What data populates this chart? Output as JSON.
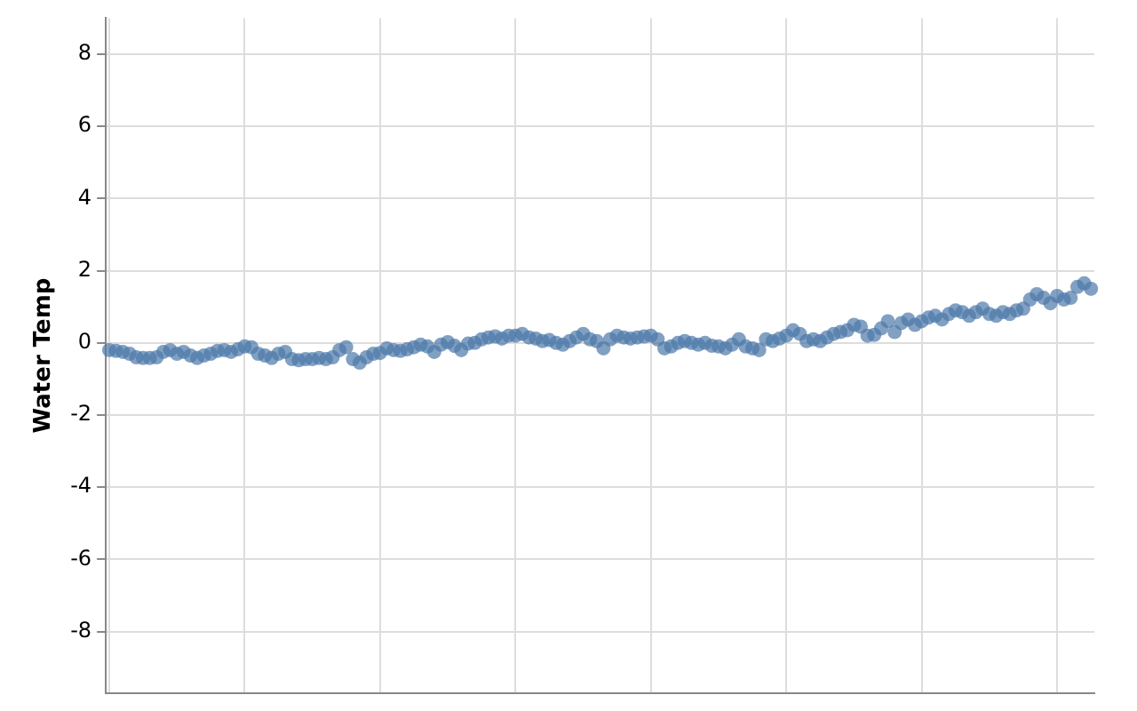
{
  "chart_data": {
    "type": "scatter",
    "ylabel": "Water Temp",
    "categories": [
      null,
      null,
      null,
      null,
      null,
      null,
      null,
      null,
      null,
      null,
      null,
      null,
      null,
      null,
      null,
      null,
      null,
      null,
      null,
      null,
      null,
      null,
      null,
      null,
      null,
      null,
      null,
      null,
      null,
      null,
      null,
      null,
      null,
      null,
      null,
      null,
      null,
      null,
      null,
      null,
      null,
      null,
      null,
      null,
      null,
      null,
      null,
      null,
      null,
      null,
      null,
      null,
      null,
      null,
      null,
      null,
      null,
      null,
      null,
      null,
      null,
      null,
      null,
      null,
      null,
      null,
      null,
      null,
      null,
      null,
      null,
      null,
      null,
      null,
      null,
      null,
      null,
      null,
      null,
      null,
      null,
      null,
      null,
      null,
      null,
      null,
      null,
      null,
      null,
      null,
      null,
      null,
      null,
      null,
      null,
      null,
      null,
      null,
      null,
      null,
      null,
      null,
      null,
      null,
      null,
      null,
      null,
      null,
      null,
      null,
      null,
      null,
      null,
      null,
      null,
      null,
      null,
      null,
      null,
      null,
      null,
      null,
      null,
      null,
      null,
      null,
      null,
      null,
      null,
      null,
      null,
      null,
      null,
      null,
      null,
      null,
      null,
      null,
      null,
      null,
      null,
      null,
      null,
      null,
      null,
      null
    ],
    "series": [
      {
        "color": "#4c78a8",
        "values": [
          -0.2,
          -0.22,
          -0.25,
          -0.3,
          -0.4,
          -0.42,
          -0.42,
          -0.4,
          -0.25,
          -0.2,
          -0.3,
          -0.25,
          -0.35,
          -0.42,
          -0.35,
          -0.3,
          -0.22,
          -0.2,
          -0.25,
          -0.18,
          -0.1,
          -0.12,
          -0.3,
          -0.35,
          -0.42,
          -0.3,
          -0.25,
          -0.45,
          -0.48,
          -0.45,
          -0.45,
          -0.42,
          -0.45,
          -0.4,
          -0.2,
          -0.12,
          -0.45,
          -0.55,
          -0.4,
          -0.3,
          -0.28,
          -0.15,
          -0.2,
          -0.22,
          -0.18,
          -0.12,
          -0.05,
          -0.1,
          -0.25,
          -0.05,
          0.02,
          -0.08,
          -0.2,
          -0.02,
          0,
          0.1,
          0.15,
          0.18,
          0.12,
          0.2,
          0.2,
          0.25,
          0.15,
          0.12,
          0.05,
          0.08,
          0,
          -0.05,
          0.05,
          0.15,
          0.25,
          0.1,
          0.05,
          -0.15,
          0.1,
          0.2,
          0.15,
          0.12,
          0.15,
          0.18,
          0.2,
          0.1,
          -0.15,
          -0.1,
          0,
          0.05,
          0,
          -0.05,
          0,
          -0.08,
          -0.1,
          -0.15,
          -0.05,
          0.1,
          -0.1,
          -0.15,
          -0.2,
          0.1,
          0.05,
          0.12,
          0.2,
          0.35,
          0.25,
          0.05,
          0.1,
          0.05,
          0.15,
          0.25,
          0.3,
          0.35,
          0.5,
          0.45,
          0.2,
          0.22,
          0.4,
          0.6,
          0.3,
          0.55,
          0.65,
          0.5,
          0.6,
          0.7,
          0.75,
          0.65,
          0.8,
          0.9,
          0.85,
          0.75,
          0.85,
          0.95,
          0.8,
          0.75,
          0.85,
          0.8,
          0.9,
          0.95,
          1.2,
          1.35,
          1.25,
          1.1,
          1.3,
          1.2,
          1.25,
          1.55,
          1.65,
          1.5
        ]
      }
    ],
    "ylim": [
      -9.7,
      9
    ],
    "yticks": [
      -8,
      -6,
      -4,
      -2,
      0,
      2,
      4,
      6,
      8
    ],
    "grid": true,
    "tick_labels": "y",
    "marker": "circle"
  }
}
